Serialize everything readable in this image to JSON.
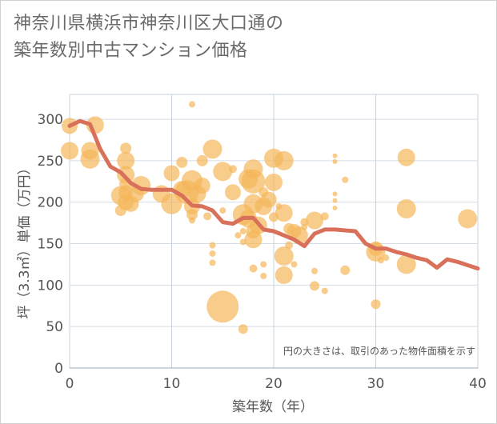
{
  "title_line1": "神奈川県横浜市神奈川区大口通の",
  "title_line2": "築年数別中古マンション価格",
  "chart_data": {
    "type": "scatter",
    "xlabel": "築年数（年）",
    "ylabel": "坪（3.3㎡）単価（万円）",
    "xlim": [
      0,
      40
    ],
    "ylim": [
      0,
      330
    ],
    "xticks": [
      0,
      10,
      20,
      30,
      40
    ],
    "yticks": [
      0,
      50,
      100,
      150,
      200,
      250,
      300
    ],
    "grid": true,
    "note": "円の大きさは、取引のあった物件面積を示す",
    "bubble_color": "#f5b75a",
    "line_color": "#d9715a",
    "series": [
      {
        "kind": "bubbles",
        "points": [
          {
            "x": 0,
            "y": 292,
            "s": 10
          },
          {
            "x": 0,
            "y": 262,
            "s": 11
          },
          {
            "x": 2,
            "y": 262,
            "s": 11
          },
          {
            "x": 2,
            "y": 252,
            "s": 12
          },
          {
            "x": 2.5,
            "y": 293,
            "s": 11
          },
          {
            "x": 5,
            "y": 208,
            "s": 12
          },
          {
            "x": 5,
            "y": 190,
            "s": 7
          },
          {
            "x": 5.5,
            "y": 200,
            "s": 10
          },
          {
            "x": 5.5,
            "y": 212,
            "s": 9
          },
          {
            "x": 5.5,
            "y": 222,
            "s": 8
          },
          {
            "x": 5.5,
            "y": 233,
            "s": 11
          },
          {
            "x": 5.5,
            "y": 250,
            "s": 11
          },
          {
            "x": 5.5,
            "y": 265,
            "s": 7
          },
          {
            "x": 6,
            "y": 198,
            "s": 10
          },
          {
            "x": 6.5,
            "y": 210,
            "s": 10
          },
          {
            "x": 7,
            "y": 220,
            "s": 12
          },
          {
            "x": 9,
            "y": 210,
            "s": 11
          },
          {
            "x": 10,
            "y": 235,
            "s": 10
          },
          {
            "x": 10,
            "y": 198,
            "s": 13
          },
          {
            "x": 11,
            "y": 248,
            "s": 7
          },
          {
            "x": 11,
            "y": 215,
            "s": 11
          },
          {
            "x": 11.5,
            "y": 212,
            "s": 15
          },
          {
            "x": 12,
            "y": 226,
            "s": 13
          },
          {
            "x": 12,
            "y": 195,
            "s": 10
          },
          {
            "x": 12,
            "y": 185,
            "s": 7
          },
          {
            "x": 12,
            "y": 178,
            "s": 4
          },
          {
            "x": 12,
            "y": 318,
            "s": 4
          },
          {
            "x": 12.5,
            "y": 210,
            "s": 11
          },
          {
            "x": 13,
            "y": 250,
            "s": 7
          },
          {
            "x": 13,
            "y": 220,
            "s": 10
          },
          {
            "x": 13.5,
            "y": 183,
            "s": 5
          },
          {
            "x": 14,
            "y": 264,
            "s": 12
          },
          {
            "x": 14,
            "y": 148,
            "s": 4
          },
          {
            "x": 14,
            "y": 138,
            "s": 4
          },
          {
            "x": 14,
            "y": 127,
            "s": 4
          },
          {
            "x": 15,
            "y": 237,
            "s": 12
          },
          {
            "x": 15,
            "y": 190,
            "s": 4
          },
          {
            "x": 15,
            "y": 74,
            "s": 20
          },
          {
            "x": 16,
            "y": 240,
            "s": 5
          },
          {
            "x": 16,
            "y": 212,
            "s": 10
          },
          {
            "x": 16.5,
            "y": 160,
            "s": 4
          },
          {
            "x": 17,
            "y": 185,
            "s": 13
          },
          {
            "x": 17,
            "y": 165,
            "s": 4
          },
          {
            "x": 17,
            "y": 152,
            "s": 4
          },
          {
            "x": 17,
            "y": 47,
            "s": 6
          },
          {
            "x": 17.5,
            "y": 228,
            "s": 12
          },
          {
            "x": 17.5,
            "y": 180,
            "s": 11
          },
          {
            "x": 18,
            "y": 240,
            "s": 12
          },
          {
            "x": 18,
            "y": 225,
            "s": 15
          },
          {
            "x": 18,
            "y": 198,
            "s": 12
          },
          {
            "x": 18,
            "y": 155,
            "s": 11
          },
          {
            "x": 18,
            "y": 165,
            "s": 9
          },
          {
            "x": 18,
            "y": 120,
            "s": 5
          },
          {
            "x": 18.5,
            "y": 172,
            "s": 11
          },
          {
            "x": 19,
            "y": 195,
            "s": 11
          },
          {
            "x": 19,
            "y": 212,
            "s": 6
          },
          {
            "x": 19,
            "y": 125,
            "s": 4
          },
          {
            "x": 19,
            "y": 111,
            "s": 4
          },
          {
            "x": 19.5,
            "y": 203,
            "s": 10
          },
          {
            "x": 20,
            "y": 253,
            "s": 12
          },
          {
            "x": 20,
            "y": 224,
            "s": 11
          },
          {
            "x": 20,
            "y": 182,
            "s": 6
          },
          {
            "x": 20.5,
            "y": 195,
            "s": 4
          },
          {
            "x": 21,
            "y": 250,
            "s": 12
          },
          {
            "x": 21,
            "y": 187,
            "s": 11
          },
          {
            "x": 21,
            "y": 135,
            "s": 12
          },
          {
            "x": 21,
            "y": 112,
            "s": 11
          },
          {
            "x": 21.5,
            "y": 168,
            "s": 7
          },
          {
            "x": 21.5,
            "y": 148,
            "s": 5
          },
          {
            "x": 22,
            "y": 165,
            "s": 9
          },
          {
            "x": 22,
            "y": 125,
            "s": 4
          },
          {
            "x": 22.5,
            "y": 160,
            "s": 11
          },
          {
            "x": 23,
            "y": 176,
            "s": 5
          },
          {
            "x": 23,
            "y": 170,
            "s": 4
          },
          {
            "x": 24,
            "y": 178,
            "s": 11
          },
          {
            "x": 24,
            "y": 117,
            "s": 4
          },
          {
            "x": 24,
            "y": 99,
            "s": 6
          },
          {
            "x": 25,
            "y": 183,
            "s": 5
          },
          {
            "x": 25,
            "y": 93,
            "s": 4
          },
          {
            "x": 26,
            "y": 256,
            "s": 3
          },
          {
            "x": 26,
            "y": 249,
            "s": 3
          },
          {
            "x": 26,
            "y": 210,
            "s": 3
          },
          {
            "x": 26,
            "y": 202,
            "s": 3
          },
          {
            "x": 26,
            "y": 193,
            "s": 3
          },
          {
            "x": 27,
            "y": 227,
            "s": 4
          },
          {
            "x": 27,
            "y": 118,
            "s": 6
          },
          {
            "x": 30,
            "y": 140,
            "s": 12
          },
          {
            "x": 30,
            "y": 144,
            "s": 9
          },
          {
            "x": 30,
            "y": 77,
            "s": 6
          },
          {
            "x": 30.5,
            "y": 130,
            "s": 4
          },
          {
            "x": 31,
            "y": 133,
            "s": 4
          },
          {
            "x": 33,
            "y": 254,
            "s": 11
          },
          {
            "x": 33,
            "y": 192,
            "s": 12
          },
          {
            "x": 33,
            "y": 125,
            "s": 12
          },
          {
            "x": 39,
            "y": 180,
            "s": 12
          }
        ]
      },
      {
        "kind": "line",
        "points": [
          {
            "x": 0,
            "y": 292
          },
          {
            "x": 1,
            "y": 298
          },
          {
            "x": 2,
            "y": 294
          },
          {
            "x": 3,
            "y": 264
          },
          {
            "x": 4,
            "y": 243
          },
          {
            "x": 5,
            "y": 236
          },
          {
            "x": 6,
            "y": 223
          },
          {
            "x": 7,
            "y": 216
          },
          {
            "x": 8,
            "y": 215
          },
          {
            "x": 9,
            "y": 215
          },
          {
            "x": 10,
            "y": 215
          },
          {
            "x": 11,
            "y": 208
          },
          {
            "x": 12,
            "y": 196
          },
          {
            "x": 13,
            "y": 195
          },
          {
            "x": 14,
            "y": 190
          },
          {
            "x": 15,
            "y": 176
          },
          {
            "x": 16,
            "y": 174
          },
          {
            "x": 17,
            "y": 181
          },
          {
            "x": 18,
            "y": 181
          },
          {
            "x": 19,
            "y": 167
          },
          {
            "x": 20,
            "y": 165
          },
          {
            "x": 21,
            "y": 160
          },
          {
            "x": 22,
            "y": 155
          },
          {
            "x": 23,
            "y": 147
          },
          {
            "x": 24,
            "y": 162
          },
          {
            "x": 25,
            "y": 167
          },
          {
            "x": 26,
            "y": 167
          },
          {
            "x": 27,
            "y": 166
          },
          {
            "x": 28,
            "y": 165
          },
          {
            "x": 29,
            "y": 150
          },
          {
            "x": 30,
            "y": 144
          },
          {
            "x": 31,
            "y": 144
          },
          {
            "x": 32,
            "y": 140
          },
          {
            "x": 33,
            "y": 137
          },
          {
            "x": 34,
            "y": 133
          },
          {
            "x": 35,
            "y": 130
          },
          {
            "x": 36,
            "y": 121
          },
          {
            "x": 37,
            "y": 131
          },
          {
            "x": 38,
            "y": 128
          },
          {
            "x": 39,
            "y": 124
          },
          {
            "x": 40,
            "y": 120
          }
        ]
      }
    ]
  }
}
